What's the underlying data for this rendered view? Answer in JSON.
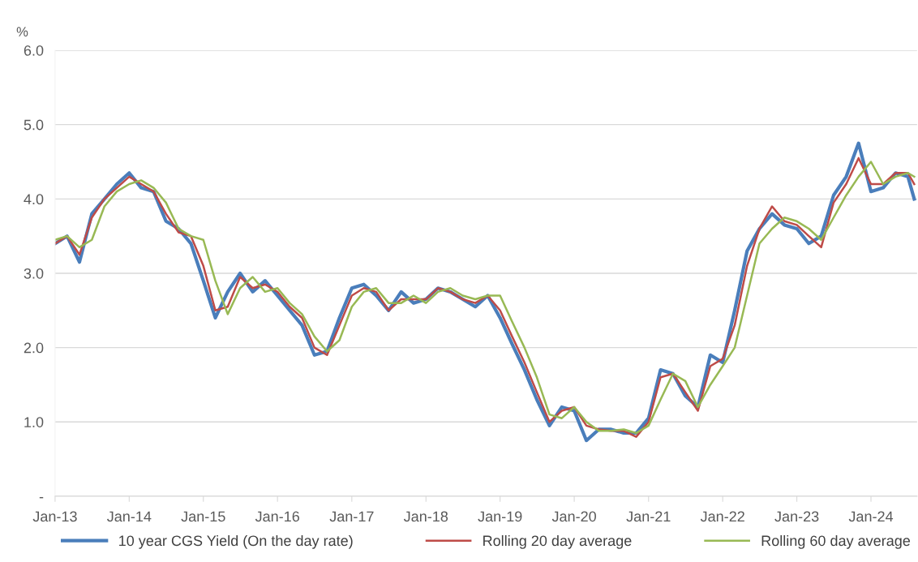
{
  "chart_data": {
    "type": "line",
    "ylabel": "%",
    "x": [
      "2013-01",
      "2013-03",
      "2013-05",
      "2013-07",
      "2013-09",
      "2013-11",
      "2014-01",
      "2014-03",
      "2014-05",
      "2014-07",
      "2014-09",
      "2014-11",
      "2015-01",
      "2015-03",
      "2015-05",
      "2015-07",
      "2015-09",
      "2015-11",
      "2016-01",
      "2016-03",
      "2016-05",
      "2016-07",
      "2016-09",
      "2016-11",
      "2017-01",
      "2017-03",
      "2017-05",
      "2017-07",
      "2017-09",
      "2017-11",
      "2018-01",
      "2018-03",
      "2018-05",
      "2018-07",
      "2018-09",
      "2018-11",
      "2019-01",
      "2019-03",
      "2019-05",
      "2019-07",
      "2019-09",
      "2019-11",
      "2020-01",
      "2020-03",
      "2020-05",
      "2020-07",
      "2020-09",
      "2020-11",
      "2021-01",
      "2021-03",
      "2021-05",
      "2021-07",
      "2021-09",
      "2021-11",
      "2022-01",
      "2022-03",
      "2022-05",
      "2022-07",
      "2022-09",
      "2022-11",
      "2023-01",
      "2023-03",
      "2023-05",
      "2023-07",
      "2023-09",
      "2023-11",
      "2024-01",
      "2024-03",
      "2024-05",
      "2024-07",
      "2024-08"
    ],
    "series": [
      {
        "name": "10 year CGS Yield (On the day rate)",
        "color": "#4a7ebb",
        "values": [
          3.4,
          3.5,
          3.15,
          3.8,
          4.0,
          4.2,
          4.35,
          4.15,
          4.1,
          3.7,
          3.6,
          3.4,
          2.9,
          2.4,
          2.75,
          3.0,
          2.75,
          2.9,
          2.7,
          2.5,
          2.3,
          1.9,
          1.95,
          2.4,
          2.8,
          2.85,
          2.7,
          2.5,
          2.75,
          2.6,
          2.65,
          2.8,
          2.75,
          2.65,
          2.55,
          2.7,
          2.4,
          2.05,
          1.7,
          1.3,
          0.95,
          1.2,
          1.15,
          0.75,
          0.9,
          0.9,
          0.85,
          0.85,
          1.05,
          1.7,
          1.65,
          1.35,
          1.2,
          1.9,
          1.8,
          2.5,
          3.3,
          3.6,
          3.8,
          3.65,
          3.6,
          3.4,
          3.5,
          4.05,
          4.3,
          4.75,
          4.1,
          4.15,
          4.35,
          4.3,
          4.0
        ]
      },
      {
        "name": "Rolling 20 day average",
        "color": "#be4b48",
        "values": [
          3.4,
          3.5,
          3.25,
          3.75,
          4.0,
          4.15,
          4.3,
          4.2,
          4.1,
          3.8,
          3.55,
          3.5,
          3.1,
          2.5,
          2.55,
          2.95,
          2.8,
          2.85,
          2.75,
          2.55,
          2.4,
          2.0,
          1.9,
          2.3,
          2.7,
          2.8,
          2.75,
          2.5,
          2.65,
          2.65,
          2.65,
          2.8,
          2.75,
          2.65,
          2.6,
          2.7,
          2.5,
          2.15,
          1.8,
          1.4,
          1.0,
          1.15,
          1.2,
          0.95,
          0.9,
          0.88,
          0.88,
          0.8,
          1.0,
          1.6,
          1.65,
          1.4,
          1.15,
          1.75,
          1.85,
          2.3,
          3.1,
          3.6,
          3.9,
          3.7,
          3.65,
          3.5,
          3.35,
          3.95,
          4.2,
          4.55,
          4.2,
          4.2,
          4.35,
          4.35,
          4.2
        ]
      },
      {
        "name": "Rolling 60 day average",
        "color": "#98b954",
        "values": [
          3.45,
          3.5,
          3.35,
          3.45,
          3.9,
          4.1,
          4.2,
          4.25,
          4.15,
          3.95,
          3.6,
          3.5,
          3.45,
          2.9,
          2.45,
          2.8,
          2.95,
          2.75,
          2.8,
          2.6,
          2.45,
          2.15,
          1.95,
          2.1,
          2.55,
          2.75,
          2.8,
          2.6,
          2.6,
          2.7,
          2.6,
          2.75,
          2.8,
          2.7,
          2.65,
          2.7,
          2.7,
          2.35,
          2.0,
          1.6,
          1.1,
          1.05,
          1.2,
          1.0,
          0.88,
          0.88,
          0.9,
          0.85,
          0.95,
          1.3,
          1.65,
          1.55,
          1.2,
          1.5,
          1.75,
          2.0,
          2.7,
          3.4,
          3.6,
          3.75,
          3.7,
          3.6,
          3.45,
          3.75,
          4.05,
          4.3,
          4.5,
          4.2,
          4.3,
          4.35,
          4.3
        ]
      }
    ],
    "xlim": [
      "2013-01-01",
      "2024-08-15"
    ],
    "xticks": [
      {
        "value": "2013-01-01",
        "label": "Jan-13"
      },
      {
        "value": "2014-01-01",
        "label": "Jan-14"
      },
      {
        "value": "2015-01-01",
        "label": "Jan-15"
      },
      {
        "value": "2016-01-01",
        "label": "Jan-16"
      },
      {
        "value": "2017-01-01",
        "label": "Jan-17"
      },
      {
        "value": "2018-01-01",
        "label": "Jan-18"
      },
      {
        "value": "2019-01-01",
        "label": "Jan-19"
      },
      {
        "value": "2020-01-01",
        "label": "Jan-20"
      },
      {
        "value": "2021-01-01",
        "label": "Jan-21"
      },
      {
        "value": "2022-01-01",
        "label": "Jan-22"
      },
      {
        "value": "2023-01-01",
        "label": "Jan-23"
      },
      {
        "value": "2024-01-01",
        "label": "Jan-24"
      }
    ],
    "ylim": [
      0,
      6
    ],
    "yticks": [
      {
        "value": 0,
        "label": "-"
      },
      {
        "value": 1,
        "label": "1.0"
      },
      {
        "value": 2,
        "label": "2.0"
      },
      {
        "value": 3,
        "label": "3.0"
      },
      {
        "value": 4,
        "label": "4.0"
      },
      {
        "value": 5,
        "label": "5.0"
      },
      {
        "value": 6,
        "label": "6.0"
      }
    ],
    "grid": "y",
    "legend": "bottom",
    "marker": "none",
    "line_style": "solid"
  }
}
